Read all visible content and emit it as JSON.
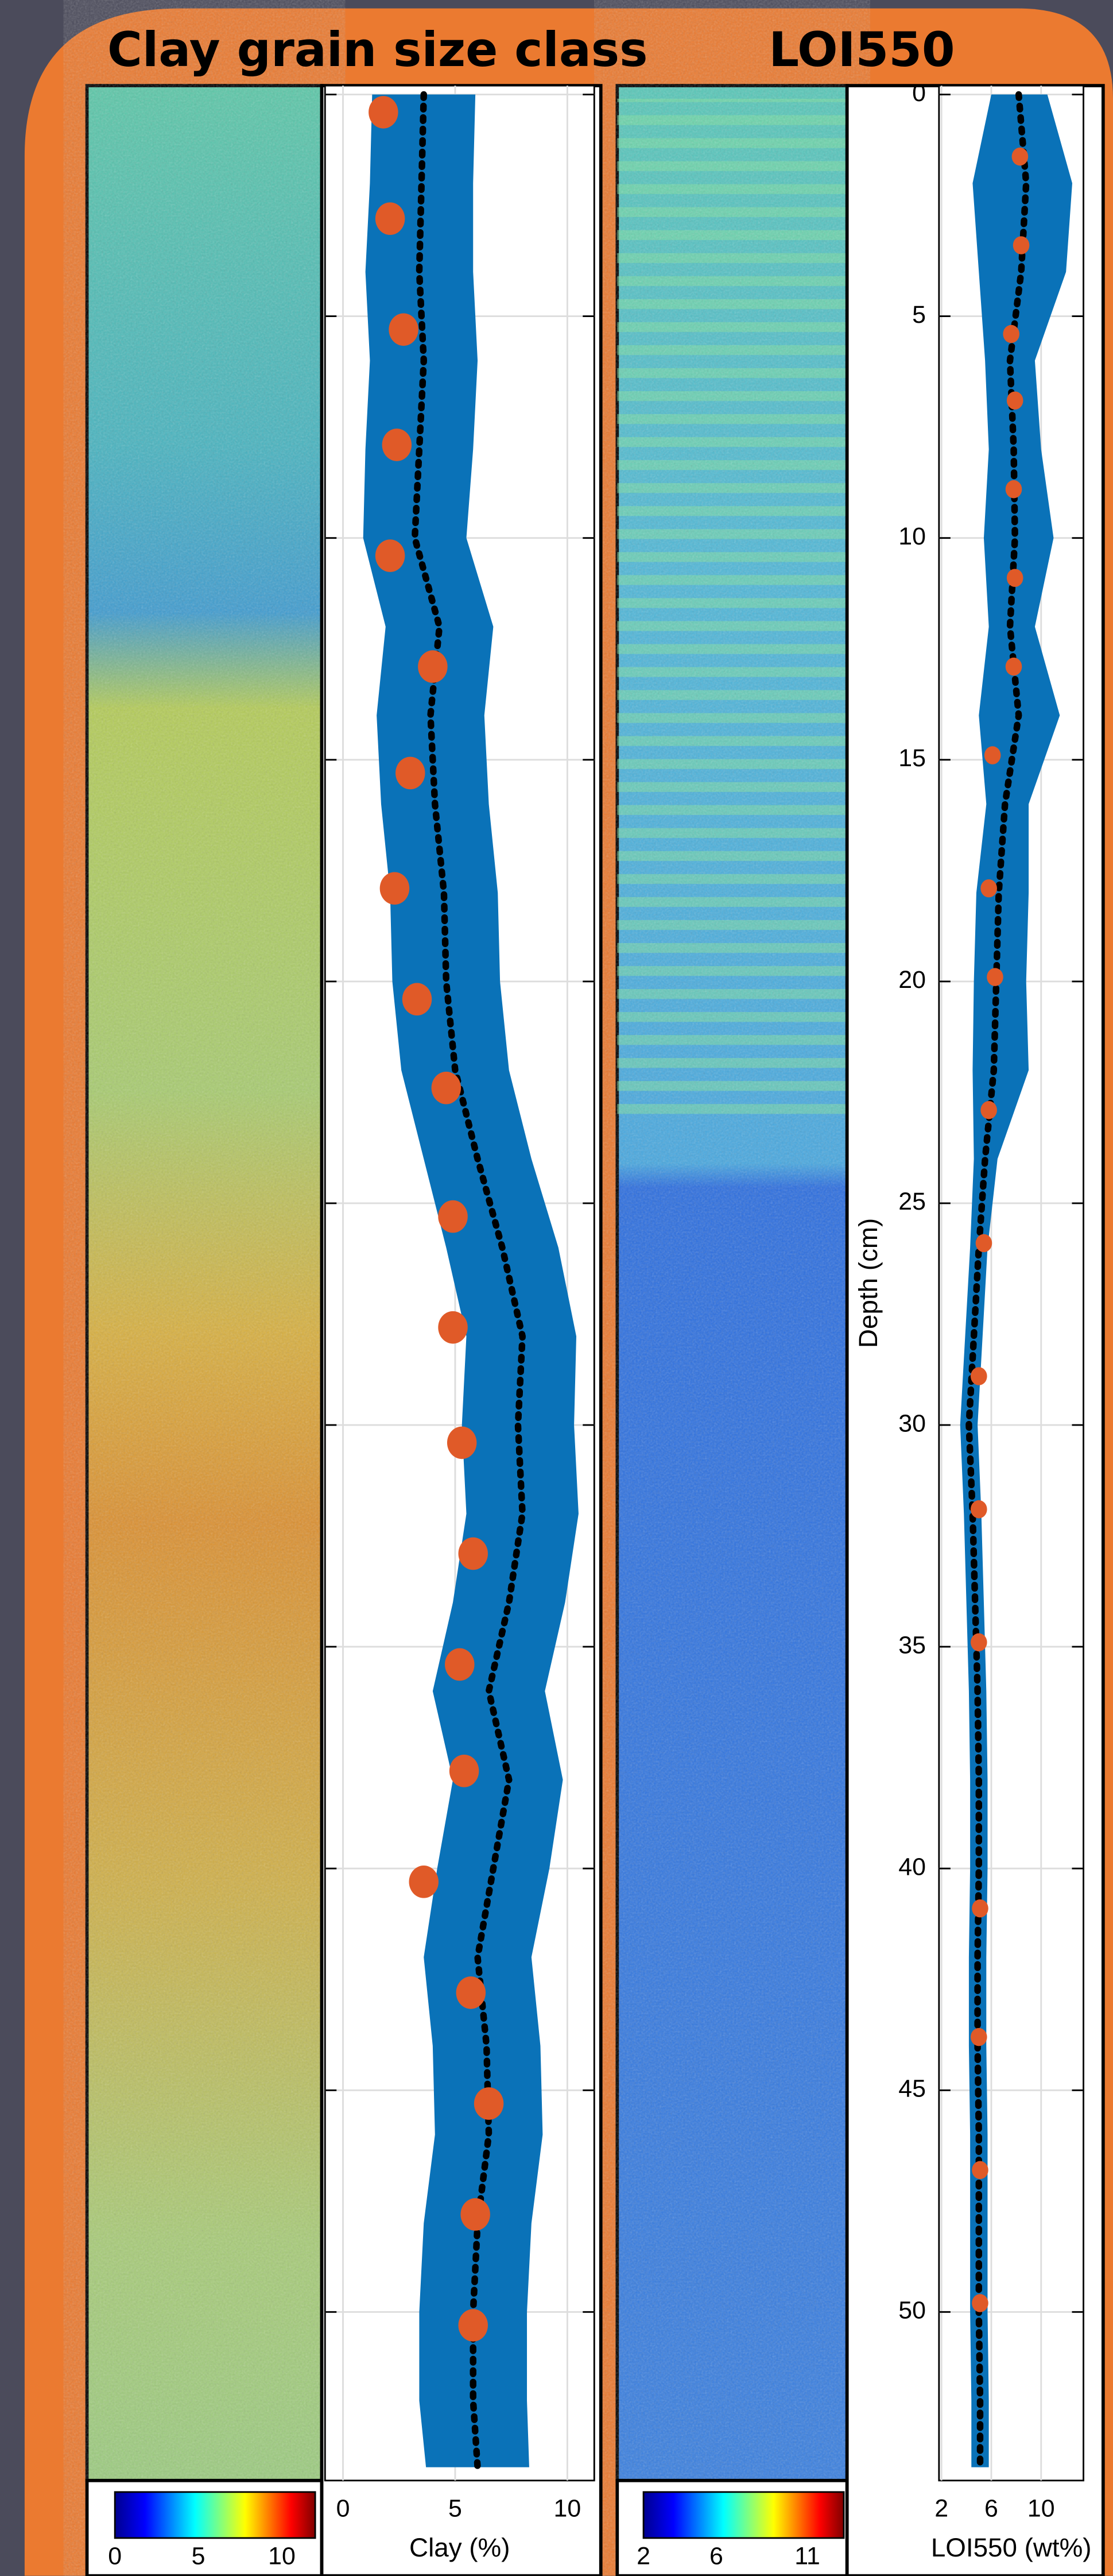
{
  "chart_data": [
    {
      "type": "line",
      "title": "Clay grain size class",
      "xlabel": "Clay (%)",
      "xlim": [
        -0.8,
        11.2
      ],
      "xticks": [
        0,
        5,
        10
      ],
      "ylim": [
        -0.2,
        53.8
      ],
      "yticks": [
        0,
        5,
        10,
        15,
        20,
        25,
        30,
        35,
        40,
        45,
        50
      ],
      "y_inverted": true,
      "show_ytick_labels": false,
      "grid": true,
      "y": [
        0,
        2,
        4,
        6,
        8,
        10,
        12,
        14,
        16,
        18,
        20,
        22,
        24,
        26,
        28,
        30,
        32,
        34,
        36,
        38,
        40,
        42,
        44,
        46,
        48,
        50,
        52,
        53.5
      ],
      "band": {
        "color": "#0a72b8",
        "lower": [
          1.3,
          1.2,
          1.0,
          1.2,
          1.0,
          0.9,
          1.9,
          1.5,
          1.7,
          2.1,
          2.2,
          2.6,
          3.6,
          4.6,
          5.5,
          5.3,
          5.5,
          4.9,
          4.0,
          4.9,
          4.2,
          3.6,
          4.0,
          4.1,
          3.6,
          3.4,
          3.4,
          3.7
        ],
        "upper": [
          5.9,
          5.8,
          5.8,
          6.0,
          5.8,
          5.5,
          6.7,
          6.3,
          6.5,
          6.9,
          7.0,
          7.4,
          8.4,
          9.6,
          10.4,
          10.3,
          10.5,
          9.9,
          9.0,
          9.8,
          9.2,
          8.4,
          8.8,
          8.9,
          8.4,
          8.2,
          8.2,
          8.3
        ]
      },
      "series": [
        {
          "color": "#000000",
          "values": [
            3.6,
            3.5,
            3.4,
            3.6,
            3.4,
            3.2,
            4.3,
            3.9,
            4.1,
            4.5,
            4.6,
            5.0,
            6.0,
            7.1,
            8.0,
            7.8,
            8.0,
            7.4,
            6.5,
            7.4,
            6.7,
            6.0,
            6.4,
            6.5,
            6.0,
            5.8,
            5.8,
            6.0
          ]
        }
      ],
      "samples": {
        "color": "#e05a28",
        "size": 9,
        "y": [
          0.4,
          2.8,
          5.3,
          7.9,
          10.4,
          12.9,
          15.3,
          17.9,
          20.4,
          22.4,
          25.3,
          27.8,
          30.4,
          32.9,
          35.4,
          37.8,
          40.3,
          42.8,
          45.3,
          47.8,
          50.3
        ],
        "values": [
          1.8,
          2.1,
          2.7,
          2.4,
          2.1,
          4.0,
          3.0,
          2.3,
          3.3,
          4.6,
          4.9,
          4.9,
          5.3,
          5.8,
          5.2,
          5.4,
          3.6,
          5.7,
          6.5,
          5.9,
          5.8
        ]
      },
      "colorbar": {
        "lim": [
          0,
          12
        ],
        "ticks": [
          0,
          5,
          10
        ]
      }
    },
    {
      "type": "line",
      "title": "LOI550",
      "xlabel": "LOI550 (wt%)",
      "ylabel": "Depth (cm)",
      "xlim": [
        1.8,
        13.4
      ],
      "xticks": [
        2,
        6,
        10
      ],
      "ylim": [
        -0.2,
        53.8
      ],
      "yticks": [
        0,
        5,
        10,
        15,
        20,
        25,
        30,
        35,
        40,
        45,
        50
      ],
      "y_inverted": true,
      "show_ytick_labels": true,
      "grid": true,
      "y": [
        0,
        2,
        4,
        6,
        8,
        10,
        12,
        14,
        16,
        18,
        20,
        22,
        24,
        26,
        28,
        30,
        32,
        34,
        36,
        38,
        40,
        42,
        44,
        46,
        48,
        50,
        52,
        53.5
      ],
      "band": {
        "color": "#0a72b8",
        "lower": [
          6.0,
          4.5,
          5.0,
          5.5,
          5.8,
          5.4,
          5.8,
          5.0,
          5.6,
          4.8,
          4.6,
          4.5,
          4.6,
          4.3,
          3.9,
          3.5,
          3.8,
          4.0,
          4.2,
          4.3,
          4.3,
          4.2,
          4.2,
          4.3,
          4.3,
          4.3,
          4.4,
          4.4
        ],
        "upper": [
          10.5,
          12.5,
          12.0,
          9.5,
          10.0,
          11.0,
          9.5,
          11.5,
          9.0,
          9.0,
          8.8,
          9.0,
          6.5,
          5.7,
          5.3,
          4.9,
          5.2,
          5.4,
          5.6,
          5.7,
          5.7,
          5.6,
          5.6,
          5.7,
          5.7,
          5.7,
          5.8,
          5.8
        ]
      },
      "series": [
        {
          "color": "#000000",
          "values": [
            8.2,
            8.8,
            8.4,
            7.5,
            7.8,
            7.9,
            7.5,
            8.2,
            7.1,
            6.6,
            6.4,
            6.2,
            5.5,
            5.0,
            4.6,
            4.2,
            4.5,
            4.7,
            4.9,
            5.0,
            5.0,
            4.9,
            4.9,
            5.0,
            5.0,
            5.0,
            5.1,
            5.1
          ]
        }
      ],
      "samples": {
        "color": "#e05a28",
        "size": 5,
        "y": [
          1.4,
          3.4,
          5.4,
          6.9,
          8.9,
          10.9,
          12.9,
          14.9,
          17.9,
          19.9,
          22.9,
          25.9,
          28.9,
          31.9,
          34.9,
          40.9,
          43.8,
          46.8,
          49.8
        ],
        "values": [
          8.3,
          8.4,
          7.6,
          7.9,
          7.8,
          7.9,
          7.8,
          6.1,
          5.8,
          6.3,
          5.8,
          5.4,
          5.0,
          5.0,
          5.0,
          5.1,
          5.0,
          5.1,
          5.1
        ]
      },
      "colorbar": {
        "lim": [
          2,
          13
        ],
        "ticks": [
          2,
          6,
          11
        ]
      }
    }
  ]
}
